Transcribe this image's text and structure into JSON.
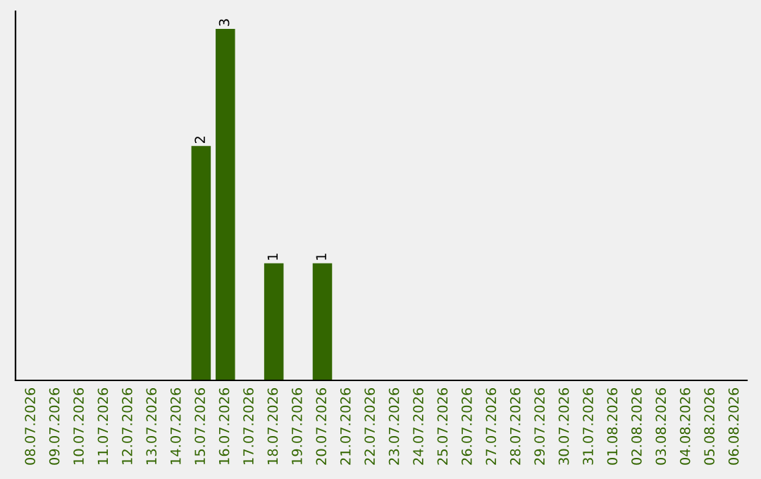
{
  "chart_data": {
    "type": "bar",
    "categories": [
      "08.07.2026",
      "09.07.2026",
      "10.07.2026",
      "11.07.2026",
      "12.07.2026",
      "13.07.2026",
      "14.07.2026",
      "15.07.2026",
      "16.07.2026",
      "17.07.2026",
      "18.07.2026",
      "19.07.2026",
      "20.07.2026",
      "21.07.2026",
      "22.07.2026",
      "23.07.2026",
      "24.07.2026",
      "25.07.2026",
      "26.07.2026",
      "27.07.2026",
      "28.07.2026",
      "29.07.2026",
      "30.07.2026",
      "31.07.2026",
      "01.08.2026",
      "02.08.2026",
      "03.08.2026",
      "04.08.2026",
      "05.08.2026",
      "06.08.2026"
    ],
    "values": [
      0,
      0,
      0,
      0,
      0,
      0,
      0,
      2,
      3,
      0,
      1,
      0,
      1,
      0,
      0,
      0,
      0,
      0,
      0,
      0,
      0,
      0,
      0,
      0,
      0,
      0,
      0,
      0,
      0,
      0
    ],
    "value_labels": [
      null,
      null,
      null,
      null,
      null,
      null,
      null,
      "2",
      "3",
      null,
      "1",
      null,
      "1",
      null,
      null,
      null,
      null,
      null,
      null,
      null,
      null,
      null,
      null,
      null,
      null,
      null,
      null,
      null,
      null,
      null
    ],
    "color": "#336600",
    "ylim": [
      0,
      3.15
    ],
    "tick_labels": "x",
    "grid": false,
    "legend": false
  }
}
